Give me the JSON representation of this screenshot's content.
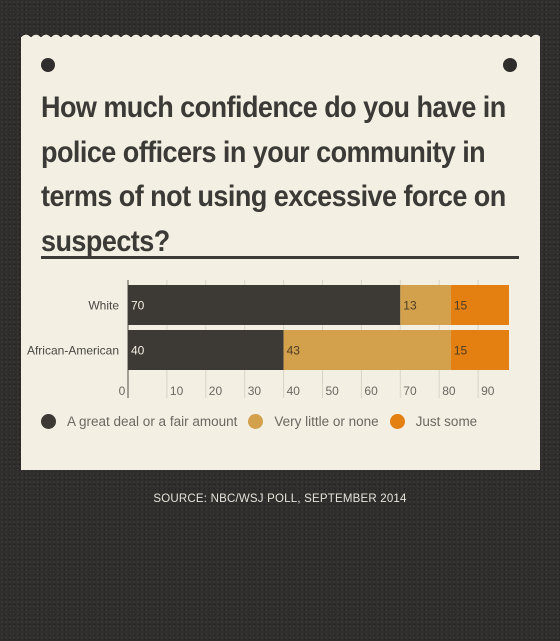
{
  "title": "How much confidence do you have in police officers in your community in terms of not using excessive force on suspects?",
  "source": "SOURCE: NBC/WSJ POLL, SEPTEMBER 2014",
  "colors": {
    "great_deal": "#3d3a35",
    "very_little": "#d3a04c",
    "just_some": "#e47f12",
    "card": "#f3efe3",
    "background": "#2f2e2c"
  },
  "legend": [
    {
      "label": "A great deal or a fair amount",
      "color": "#3d3a35"
    },
    {
      "label": "Very little or none",
      "color": "#d3a04c"
    },
    {
      "label": "Just some",
      "color": "#e47f12"
    }
  ],
  "chart_data": {
    "type": "bar",
    "orientation": "horizontal",
    "stacked": true,
    "categories": [
      "White",
      "African-American"
    ],
    "series": [
      {
        "name": "A great deal or a fair amount",
        "values": [
          70,
          40
        ]
      },
      {
        "name": "Very little or none",
        "values": [
          13,
          43
        ]
      },
      {
        "name": "Just some",
        "values": [
          15,
          15
        ]
      }
    ],
    "xlim": [
      0,
      100
    ],
    "xticks": [
      0,
      10,
      20,
      30,
      40,
      50,
      60,
      70,
      80,
      90
    ],
    "grid": true,
    "legend_position": "bottom-left"
  }
}
